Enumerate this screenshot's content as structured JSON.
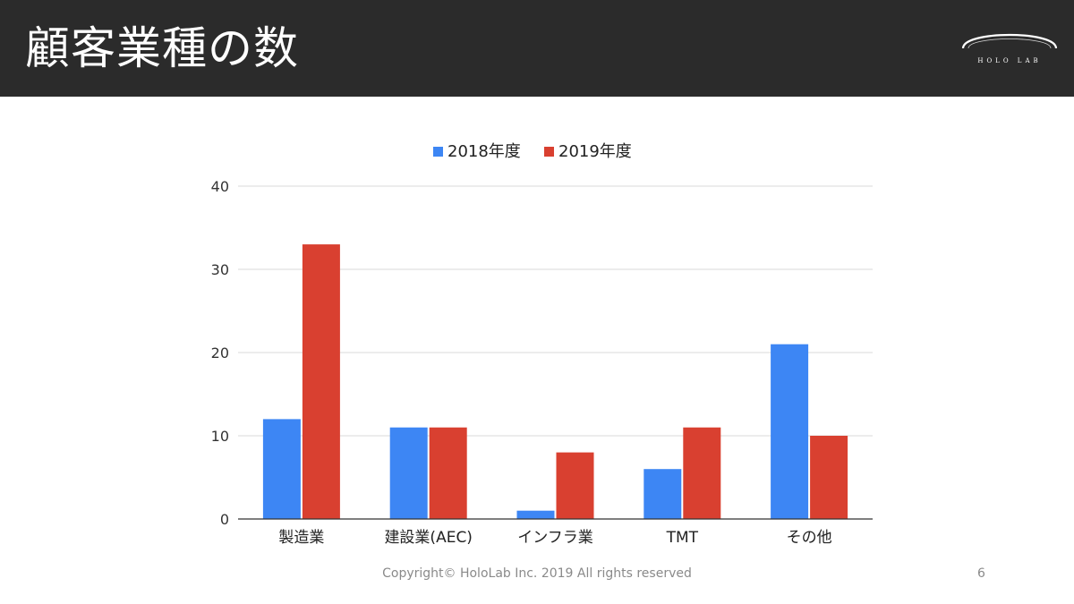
{
  "header": {
    "title": "顧客業種の数",
    "logo_text": "HOLO LAB"
  },
  "chart_data": {
    "type": "bar",
    "categories": [
      "製造業",
      "建設業(AEC)",
      "インフラ業",
      "TMT",
      "その他"
    ],
    "series": [
      {
        "name": "2018年度",
        "color": "#3d86f4",
        "values": [
          12,
          11,
          1,
          6,
          21
        ]
      },
      {
        "name": "2019年度",
        "color": "#d94030",
        "values": [
          33,
          11,
          8,
          11,
          10
        ]
      }
    ],
    "yticks": [
      "0",
      "10",
      "20",
      "30",
      "40"
    ],
    "ylim": [
      0,
      40
    ],
    "grid": true,
    "legend_position": "top"
  },
  "footer": {
    "copyright": "Copyright© HoloLab Inc. 2019 All rights reserved",
    "page_number": "6"
  }
}
